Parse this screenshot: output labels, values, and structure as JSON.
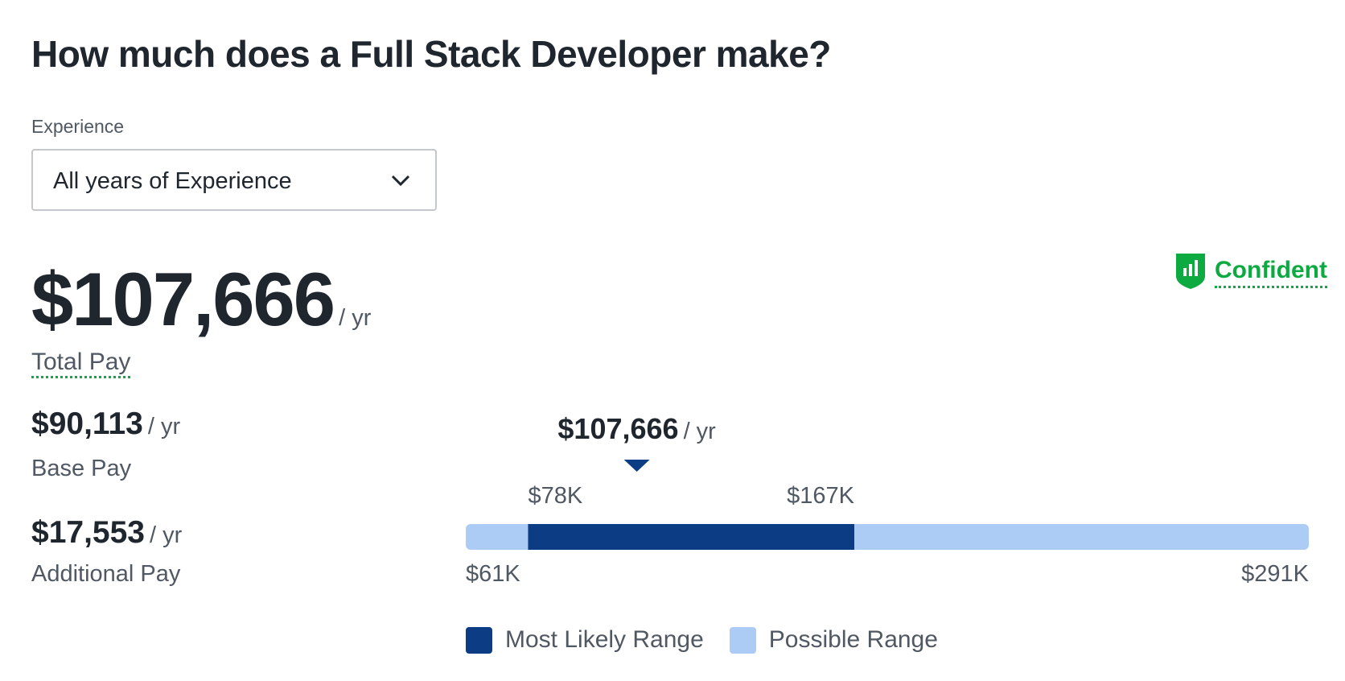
{
  "header": {
    "title": "How much does a Full Stack Developer make?"
  },
  "filter": {
    "label": "Experience",
    "selected": "All years of Experience"
  },
  "confidence": "Confident",
  "total": {
    "amount": "$107,666",
    "unit": "/ yr",
    "label": "Total Pay"
  },
  "breakdown": [
    {
      "amount": "$90,113",
      "unit": "/ yr",
      "label": "Base Pay"
    },
    {
      "amount": "$17,553",
      "unit": "/ yr",
      "label": "Additional Pay"
    }
  ],
  "range": {
    "median": {
      "value": 107666,
      "label": "$107,666"
    },
    "unit": "/ yr",
    "min": {
      "value": 61000,
      "label": "$61K"
    },
    "likely_low": {
      "value": 78000,
      "label": "$78K"
    },
    "likely_high": {
      "value": 167000,
      "label": "$167K"
    },
    "max": {
      "value": 291000,
      "label": "$291K"
    },
    "legend": [
      {
        "name": "Most Likely Range",
        "color": "#0c3c84"
      },
      {
        "name": "Possible Range",
        "color": "#acccf5"
      }
    ]
  }
}
